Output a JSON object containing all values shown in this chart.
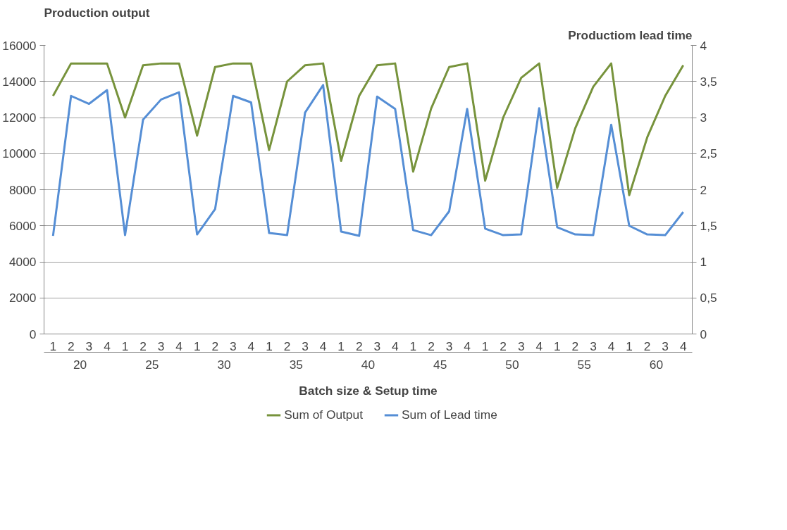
{
  "chart_data": {
    "type": "line",
    "xlabel": "Batch size & Setup time",
    "ylabel": "Production output",
    "y2label": "Productiom lead time",
    "categories": [
      "1",
      "2",
      "3",
      "4",
      "1",
      "2",
      "3",
      "4",
      "1",
      "2",
      "3",
      "4",
      "1",
      "2",
      "3",
      "4",
      "1",
      "2",
      "3",
      "4",
      "1",
      "2",
      "3",
      "4",
      "1",
      "2",
      "3",
      "4",
      "1",
      "2",
      "3",
      "4",
      "1",
      "2",
      "3",
      "4"
    ],
    "annotations": [
      "20",
      "25",
      "30",
      "35",
      "40",
      "45",
      "50",
      "55",
      "60"
    ],
    "series": [
      {
        "name": "Sum of Output",
        "color": "#77933c",
        "values": [
          13200,
          15000,
          15000,
          15000,
          12000,
          14900,
          15000,
          15000,
          11000,
          14800,
          15000,
          15000,
          10200,
          14000,
          14900,
          15000,
          9600,
          13200,
          14900,
          15000,
          9000,
          12500,
          14800,
          15000,
          8500,
          12000,
          14200,
          15000,
          8100,
          11400,
          13700,
          15000,
          7700,
          10900,
          13200,
          14900
        ]
      },
      {
        "name": "Sum of Lead time",
        "color": "#558ed5",
        "axis": "y2",
        "values": [
          1.36,
          3.3,
          3.19,
          3.38,
          1.37,
          2.97,
          3.25,
          3.35,
          1.38,
          1.73,
          3.3,
          3.21,
          1.4,
          1.37,
          3.07,
          3.45,
          1.42,
          1.36,
          3.29,
          3.12,
          1.44,
          1.37,
          1.7,
          3.12,
          1.46,
          1.37,
          1.38,
          3.13,
          1.48,
          1.38,
          1.37,
          2.9,
          1.5,
          1.38,
          1.37,
          1.69
        ]
      }
    ],
    "ylim": [
      0,
      16000
    ],
    "yticks": [
      0,
      2000,
      4000,
      6000,
      8000,
      10000,
      12000,
      14000,
      16000
    ],
    "y2lim": [
      0,
      4
    ],
    "y2ticks": [
      0,
      {
        "value": 0.5,
        "label": "0,5"
      },
      1,
      {
        "value": 1.5,
        "label": "1,5"
      },
      2,
      {
        "value": 2.5,
        "label": "2,5"
      },
      3,
      {
        "value": 3.5,
        "label": "3,5"
      },
      4
    ],
    "grid": "y",
    "legend": "bottom",
    "marker": "none",
    "line_style": "solid"
  }
}
